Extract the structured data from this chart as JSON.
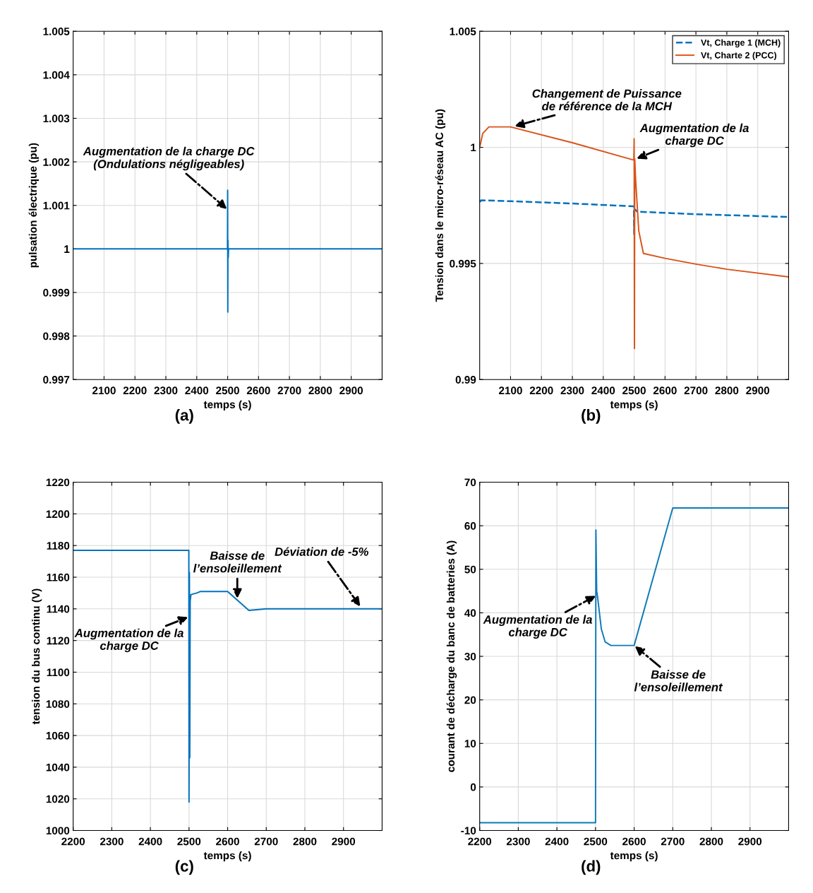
{
  "chart_data": [
    {
      "type": "line",
      "title": "(a)",
      "xlabel": "temps (s)",
      "ylabel": "pulsation électrique (pu)",
      "xlim": [
        2000,
        3000
      ],
      "xticks": [
        2100,
        2200,
        2300,
        2400,
        2500,
        2600,
        2700,
        2800,
        2900
      ],
      "ylim": [
        0.997,
        1.005
      ],
      "yticks": [
        0.997,
        0.998,
        0.999,
        1,
        1.001,
        1.002,
        1.003,
        1.004,
        1.005
      ],
      "grid": true,
      "legend": false,
      "x": [
        2000,
        2499.5,
        2500,
        2500.5,
        2501,
        2502,
        2503,
        3000
      ],
      "series": [
        {
          "color": "#0072bd",
          "values": [
            1,
            1,
            1.00135,
            0.99855,
            1.0002,
            0.9998,
            1,
            1
          ]
        }
      ],
      "annotations": [
        {
          "text": "Augmentation de la charge DC\n(Ondulations négligeables)",
          "x": 2500,
          "y": 1.0009
        }
      ]
    },
    {
      "type": "line",
      "title": "(b)",
      "xlabel": "temps (s)",
      "ylabel": "Tension dans le micro-réseau AC (pu)",
      "xlim": [
        2000,
        3000
      ],
      "xticks": [
        2100,
        2200,
        2300,
        2400,
        2500,
        2600,
        2700,
        2800,
        2900
      ],
      "ylim": [
        0.99,
        1.005
      ],
      "yticks": [
        0.99,
        0.995,
        1,
        1.005
      ],
      "grid": true,
      "legend": "top right",
      "series": [
        {
          "name": "Vt, Charge 1 (MCH)",
          "color": "#0072bd",
          "line_style": "dashed",
          "x": [
            2000,
            2005,
            2100,
            2300,
            2499,
            2500,
            2501,
            2510,
            2700,
            3000
          ],
          "values": [
            0.99765,
            0.99772,
            0.99768,
            0.99758,
            0.99746,
            0.99626,
            0.99735,
            0.99723,
            0.99712,
            0.997
          ]
        },
        {
          "name": "Vt, Charte 2 (PCC)",
          "color": "#d95319",
          "line_style": "solid",
          "x": [
            2000,
            2010,
            2030,
            2100,
            2300,
            2499,
            2500,
            2501,
            2502,
            2505,
            2515,
            2530,
            2600,
            2700,
            2800,
            3000
          ],
          "values": [
            1,
            1.0006,
            1.00088,
            1.00088,
            1.0002,
            0.99945,
            1.00037,
            0.99134,
            0.9995,
            0.99857,
            0.9964,
            0.99543,
            0.99522,
            0.99497,
            0.99475,
            0.99442
          ]
        }
      ],
      "annotations": [
        {
          "text": "Changement de Puissance\nde référence de la MCH",
          "x": 2110,
          "y": 1.0009
        },
        {
          "text": "Augmentation de la\ncharge DC",
          "x": 2505,
          "y": 0.9995
        }
      ]
    },
    {
      "type": "line",
      "title": "(c)",
      "xlabel": "temps (s)",
      "ylabel": "tension du bus continu (V)",
      "xlim": [
        2200,
        3000
      ],
      "xticks": [
        2200,
        2300,
        2400,
        2500,
        2600,
        2700,
        2800,
        2900
      ],
      "ylim": [
        1000,
        1220
      ],
      "yticks": [
        1000,
        1020,
        1040,
        1060,
        1080,
        1100,
        1120,
        1140,
        1160,
        1180,
        1200,
        1220
      ],
      "grid": true,
      "legend": false,
      "x": [
        2200,
        2499.5,
        2500,
        2501,
        2502,
        2503,
        2505,
        2520,
        2530,
        2600,
        2655,
        2700,
        3000
      ],
      "series": [
        {
          "color": "#0072bd",
          "values": [
            1177,
            1177,
            1018,
            1163,
            1046,
            1145,
            1149,
            1150,
            1151,
            1151,
            1139,
            1140,
            1140
          ]
        }
      ],
      "annotations": [
        {
          "text": "Augmentation de la\ncharge DC",
          "x": 2500,
          "y": 1135
        },
        {
          "text": "Baisse de\nl’ensoleillement",
          "x": 2625,
          "y": 1146
        },
        {
          "text": "Déviation de -5%",
          "x": 2945,
          "y": 1141
        }
      ]
    },
    {
      "type": "line",
      "title": "(d)",
      "xlabel": "temps (s)",
      "ylabel": "courant de décharge du banc de batteries (A)",
      "xlim": [
        2200,
        3000
      ],
      "xticks": [
        2200,
        2300,
        2400,
        2500,
        2600,
        2700,
        2800,
        2900
      ],
      "ylim": [
        -10,
        70
      ],
      "yticks": [
        -10,
        0,
        10,
        20,
        30,
        40,
        50,
        60,
        70
      ],
      "grid": true,
      "legend": false,
      "x": [
        2200,
        2500,
        2501,
        2503,
        2505,
        2515,
        2525,
        2540,
        2600,
        2700,
        3000
      ],
      "series": [
        {
          "color": "#0e7ab8",
          "values": [
            -8.2,
            -8.2,
            59,
            45,
            43.9,
            36.3,
            33.3,
            32.5,
            32.5,
            64.1,
            64.1
          ]
        }
      ],
      "annotations": [
        {
          "text": "Augmentation de la\ncharge DC",
          "x": 2503,
          "y": 44
        },
        {
          "text": "Baisse de\nl’ensoleillement",
          "x": 2600,
          "y": 32.5
        }
      ]
    }
  ]
}
